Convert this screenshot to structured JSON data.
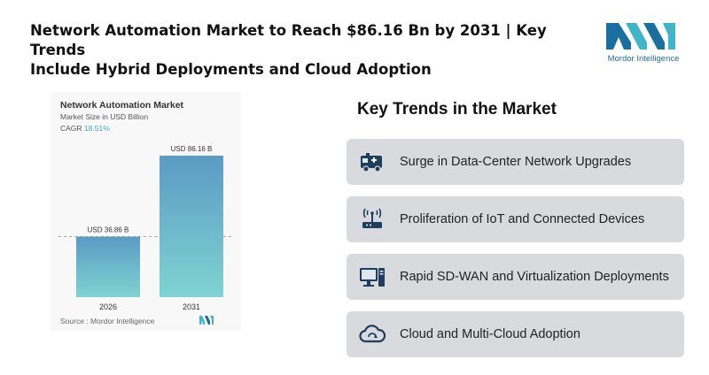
{
  "headline": {
    "line1": "Network Automation Market to Reach $86.16 Bn by 2031 | Key Trends",
    "line2": "Include Hybrid Deployments and Cloud Adoption"
  },
  "brand": {
    "logo_text": "Mordor Intelligence",
    "primary_color": "#1a6fa0",
    "accent_color": "#3fb5c8"
  },
  "chart": {
    "title": "Network Automation Market",
    "subtitle": "Market Size in USD Billion",
    "cagr_label": "CAGR",
    "cagr_value": "18.51%",
    "source": "Source : Mordor Intelligence"
  },
  "chart_data": {
    "type": "bar",
    "categories": [
      "2026",
      "2031"
    ],
    "values": [
      36.86,
      86.16
    ],
    "data_labels": [
      "USD 36.86 B",
      "USD 86.16 B"
    ],
    "title": "Network Automation Market",
    "ylabel": "Market Size in USD Billion",
    "xlabel": "",
    "ylim": [
      0,
      100
    ],
    "grid": false,
    "reference_line": "dashed line at 2026 value",
    "bar_color_top": "#5b9bc4",
    "bar_color_bottom": "#7fd3d2"
  },
  "key_trends": {
    "title": "Key Trends in the Market",
    "items": [
      {
        "label": "Surge in Data-Center Network Upgrades",
        "icon": "ambulance-icon"
      },
      {
        "label": "Proliferation of IoT and Connected Devices",
        "icon": "router-icon"
      },
      {
        "label": "Rapid SD-WAN and Virtualization Deployments",
        "icon": "computer-icon"
      },
      {
        "label": "Cloud and Multi-Cloud Adoption",
        "icon": "cloud-icon"
      }
    ]
  }
}
